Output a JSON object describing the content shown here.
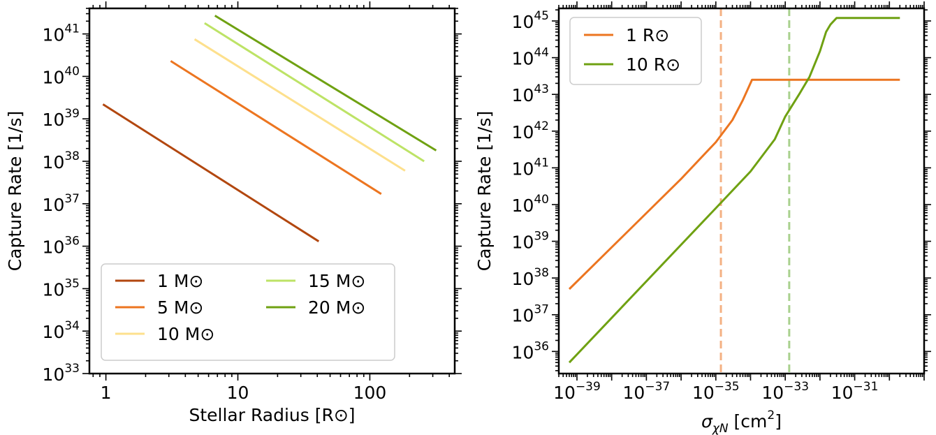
{
  "chart_data": [
    {
      "type": "line",
      "xlabel": "Stellar Radius [R⊙]",
      "ylabel": "Capture Rate [1/s]",
      "xscale": "log",
      "yscale": "log",
      "xlim": [
        0.75,
        440
      ],
      "ylim": [
        1e+33,
        4e+41
      ],
      "xticks": [
        {
          "value": 1,
          "label": "1"
        },
        {
          "value": 10,
          "label": "10"
        },
        {
          "value": 100,
          "label": "100"
        }
      ],
      "yticks": [
        {
          "exp": 33,
          "base": "10",
          "sup": "33"
        },
        {
          "exp": 34,
          "base": "10",
          "sup": "34"
        },
        {
          "exp": 35,
          "base": "10",
          "sup": "35"
        },
        {
          "exp": 36,
          "base": "10",
          "sup": "36"
        },
        {
          "exp": 37,
          "base": "10",
          "sup": "37"
        },
        {
          "exp": 38,
          "base": "10",
          "sup": "38"
        },
        {
          "exp": 39,
          "base": "10",
          "sup": "39"
        },
        {
          "exp": 40,
          "base": "10",
          "sup": "40"
        },
        {
          "exp": 41,
          "base": "10",
          "sup": "41"
        }
      ],
      "legend": {
        "placement": "lower-left",
        "columns": 2
      },
      "series": [
        {
          "name": "1 M⊙",
          "color": "#b2470f",
          "x": [
            0.95,
            41
          ],
          "y": [
            2.2e+39,
            1.3e+36
          ]
        },
        {
          "name": "5 M⊙",
          "color": "#ec7520",
          "x": [
            3.1,
            122
          ],
          "y": [
            2.3e+40,
            1.7e+37
          ]
        },
        {
          "name": "10 M⊙",
          "color": "#fde08d",
          "x": [
            4.7,
            185
          ],
          "y": [
            7.5e+40,
            6e+37
          ]
        },
        {
          "name": "15 M⊙",
          "color": "#bde366",
          "x": [
            5.6,
            258
          ],
          "y": [
            1.8e+41,
            1e+38
          ]
        },
        {
          "name": "20 M⊙",
          "color": "#6fa112",
          "x": [
            6.7,
            318
          ],
          "y": [
            2.7e+41,
            1.8e+38
          ]
        }
      ]
    },
    {
      "type": "line",
      "xlabel_sym": "σ",
      "xlabel_sub": "χN",
      "xlabel_unit": " [cm",
      "xlabel_sup": "2",
      "xlabel_close": "]",
      "ylabel": "Capture Rate [1/s]",
      "xscale": "log",
      "yscale": "log",
      "xlim": [
        3e-40,
        1e-29
      ],
      "ylim": [
        2.5e+35,
        2.2e+45
      ],
      "xticks": [
        {
          "exp": -39,
          "base": "10",
          "sup": "−39"
        },
        {
          "exp": -37,
          "base": "10",
          "sup": "−37"
        },
        {
          "exp": -35,
          "base": "10",
          "sup": "−35"
        },
        {
          "exp": -33,
          "base": "10",
          "sup": "−33"
        },
        {
          "exp": -31,
          "base": "10",
          "sup": "−31"
        }
      ],
      "yticks": [
        {
          "exp": 36,
          "base": "10",
          "sup": "36"
        },
        {
          "exp": 37,
          "base": "10",
          "sup": "37"
        },
        {
          "exp": 38,
          "base": "10",
          "sup": "38"
        },
        {
          "exp": 39,
          "base": "10",
          "sup": "39"
        },
        {
          "exp": 40,
          "base": "10",
          "sup": "40"
        },
        {
          "exp": 41,
          "base": "10",
          "sup": "41"
        },
        {
          "exp": 42,
          "base": "10",
          "sup": "42"
        },
        {
          "exp": 43,
          "base": "10",
          "sup": "43"
        },
        {
          "exp": 44,
          "base": "10",
          "sup": "44"
        },
        {
          "exp": 45,
          "base": "10",
          "sup": "45"
        }
      ],
      "legend": {
        "placement": "top-left",
        "columns": 1
      },
      "series": [
        {
          "name": "1 R⊙",
          "color": "#ec7520",
          "x": [
            6e-40,
            1e-36,
            1e-35,
            3e-35,
            6e-35,
            1.1e-34,
            1e-32,
            2e-30
          ],
          "y": [
            5e+37,
            5e+40,
            5e+41,
            2e+42,
            7e+42,
            2.5e+43,
            2.5e+43,
            2.5e+43
          ]
        },
        {
          "name": "10 R⊙",
          "color": "#6fa112",
          "x": [
            6e-40,
            1e-35,
            1e-34,
            5e-34,
            1e-33,
            2.5e-33,
            5e-33,
            1e-32,
            1.5e-32,
            2e-32,
            3e-32,
            4.5e-32,
            2e-30
          ],
          "y": [
            5e+35,
            8e+39,
            8e+40,
            6e+41,
            2.5e+42,
            1e+43,
            3e+43,
            1.5e+44,
            5e+44,
            8e+44,
            1.2e+45,
            1.2e+45,
            1.2e+45
          ]
        }
      ],
      "reference_lines": [
        {
          "x": 1.4e-35,
          "color": "#f4b183",
          "style": "dashed"
        },
        {
          "x": 1.3e-33,
          "color": "#a9d18e",
          "style": "dashed"
        }
      ]
    }
  ]
}
